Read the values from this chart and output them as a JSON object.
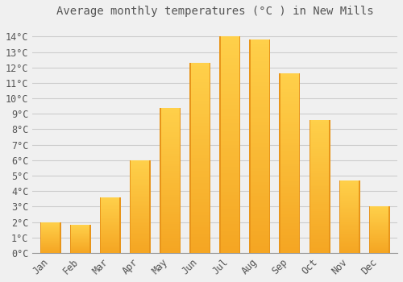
{
  "title": "Average monthly temperatures (°C ) in New Mills",
  "months": [
    "Jan",
    "Feb",
    "Mar",
    "Apr",
    "May",
    "Jun",
    "Jul",
    "Aug",
    "Sep",
    "Oct",
    "Nov",
    "Dec"
  ],
  "values": [
    2.0,
    1.8,
    3.6,
    6.0,
    9.4,
    12.3,
    14.0,
    13.8,
    11.6,
    8.6,
    4.7,
    3.0
  ],
  "bar_color_bottom": "#F5A623",
  "bar_color_mid": "#FFD04A",
  "bar_edge_color": "#E8951A",
  "background_color": "#F0F0F0",
  "grid_color": "#CCCCCC",
  "text_color": "#555555",
  "ylim": [
    0,
    15
  ],
  "yticks": [
    0,
    1,
    2,
    3,
    4,
    5,
    6,
    7,
    8,
    9,
    10,
    11,
    12,
    13,
    14
  ],
  "title_fontsize": 10,
  "tick_fontsize": 8.5,
  "bar_width": 0.7
}
